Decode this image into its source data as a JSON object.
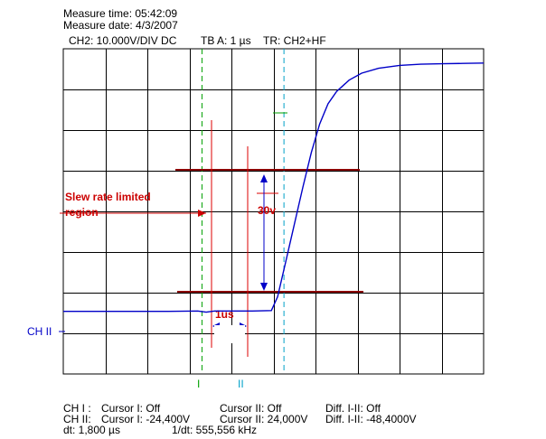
{
  "header": {
    "measure_time": "Measure time: 05:42:09",
    "measure_date": "Measure date: 4/3/2007",
    "channel_settings": "CH2: 10.000V/DIV DC",
    "timebase": "TB A: 1 µs",
    "trigger": "TR: CH2+HF"
  },
  "channel_label": "CH II",
  "cursor_markers": {
    "cursor1": "I",
    "cursor2": "II"
  },
  "annotations": {
    "slew_line1": "Slew rate limited",
    "slew_line2": "region",
    "voltage_delta": "30v",
    "time_delta": "1us"
  },
  "readouts": {
    "row1": {
      "ch": "CH I :",
      "c1": "Cursor I: Off",
      "c2": "Cursor II: Off",
      "diff": "Diff. I-II: Off"
    },
    "row2": {
      "ch": "CH II:",
      "c1": "Cursor I: -24,400V",
      "c2": "Cursor II: 24,000V",
      "diff": "Diff. I-II: -48,4000V"
    },
    "row3": {
      "dt": "dt: 1,800 µs",
      "inv": "1/dt: 555,556 kHz"
    }
  },
  "colors": {
    "grid": "#000000",
    "trace": "#0000c8",
    "cursor1": "#00a000",
    "cursor2": "#00a0c8",
    "annotation": "#cc0000",
    "level_lines": "#8b0000",
    "channel_label": "#0000c8"
  },
  "chart_data": {
    "type": "line",
    "x_divisions": 10,
    "y_divisions": 8,
    "series": [
      {
        "values_xy": [
          [
            0,
            -24.6
          ],
          [
            2.5,
            -24.6
          ],
          [
            3.2,
            -24.5
          ],
          [
            3.4,
            -24.8
          ],
          [
            3.6,
            -24.5
          ],
          [
            4.0,
            -24.5
          ],
          [
            4.5,
            -24.5
          ],
          [
            4.95,
            -24.4
          ],
          [
            5.1,
            -21.0
          ],
          [
            5.3,
            -12.0
          ],
          [
            5.5,
            -3.0
          ],
          [
            5.7,
            6.0
          ],
          [
            5.9,
            14.5
          ],
          [
            6.1,
            21.5
          ],
          [
            6.3,
            26.5
          ],
          [
            6.5,
            29.5
          ],
          [
            6.8,
            32.3
          ],
          [
            7.1,
            34.0
          ],
          [
            7.5,
            35.2
          ],
          [
            8.0,
            35.9
          ],
          [
            8.5,
            36.2
          ],
          [
            9.0,
            36.3
          ],
          [
            9.5,
            36.4
          ],
          [
            10.0,
            36.5
          ]
        ]
      }
    ],
    "cursors_x": [
      3.3,
      5.25
    ],
    "xlim": [
      0,
      10
    ],
    "ylim": [
      -40,
      40
    ]
  }
}
